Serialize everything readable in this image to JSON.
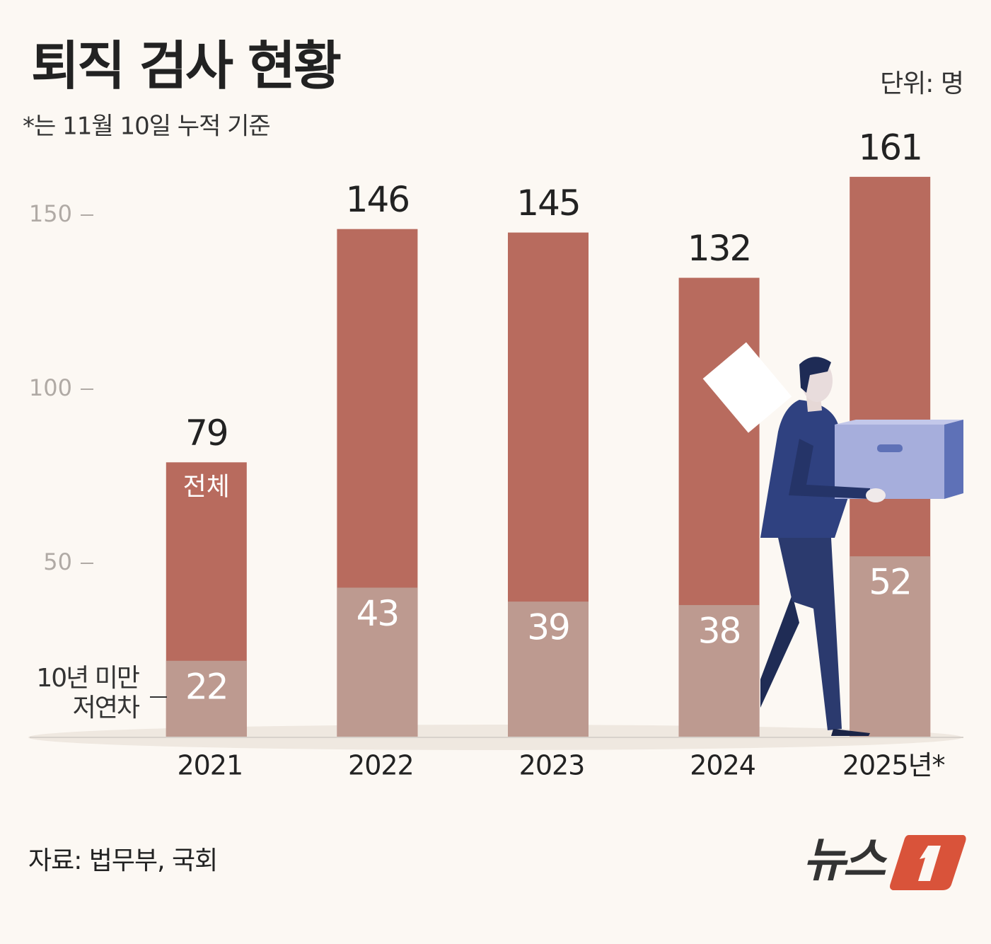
{
  "chart_data": {
    "type": "bar",
    "title": "퇴직 검사 현황",
    "subtitle": "*는 11월 10일 누적 기준",
    "unit": "단위: 명",
    "source": "자료: 법무부, 국회",
    "logo": "뉴스",
    "categories": [
      "2021",
      "2022",
      "2023",
      "2024",
      "2025년*"
    ],
    "series": [
      {
        "name": "전체",
        "color": "#b86b5e",
        "values": [
          79,
          146,
          145,
          132,
          161
        ]
      },
      {
        "name": "10년 미만\n저연차",
        "color": "#bd9a90",
        "values": [
          22,
          43,
          39,
          38,
          52
        ]
      }
    ],
    "ylim": [
      0,
      170
    ],
    "yticks": [
      50,
      100,
      150
    ],
    "grid": false
  }
}
